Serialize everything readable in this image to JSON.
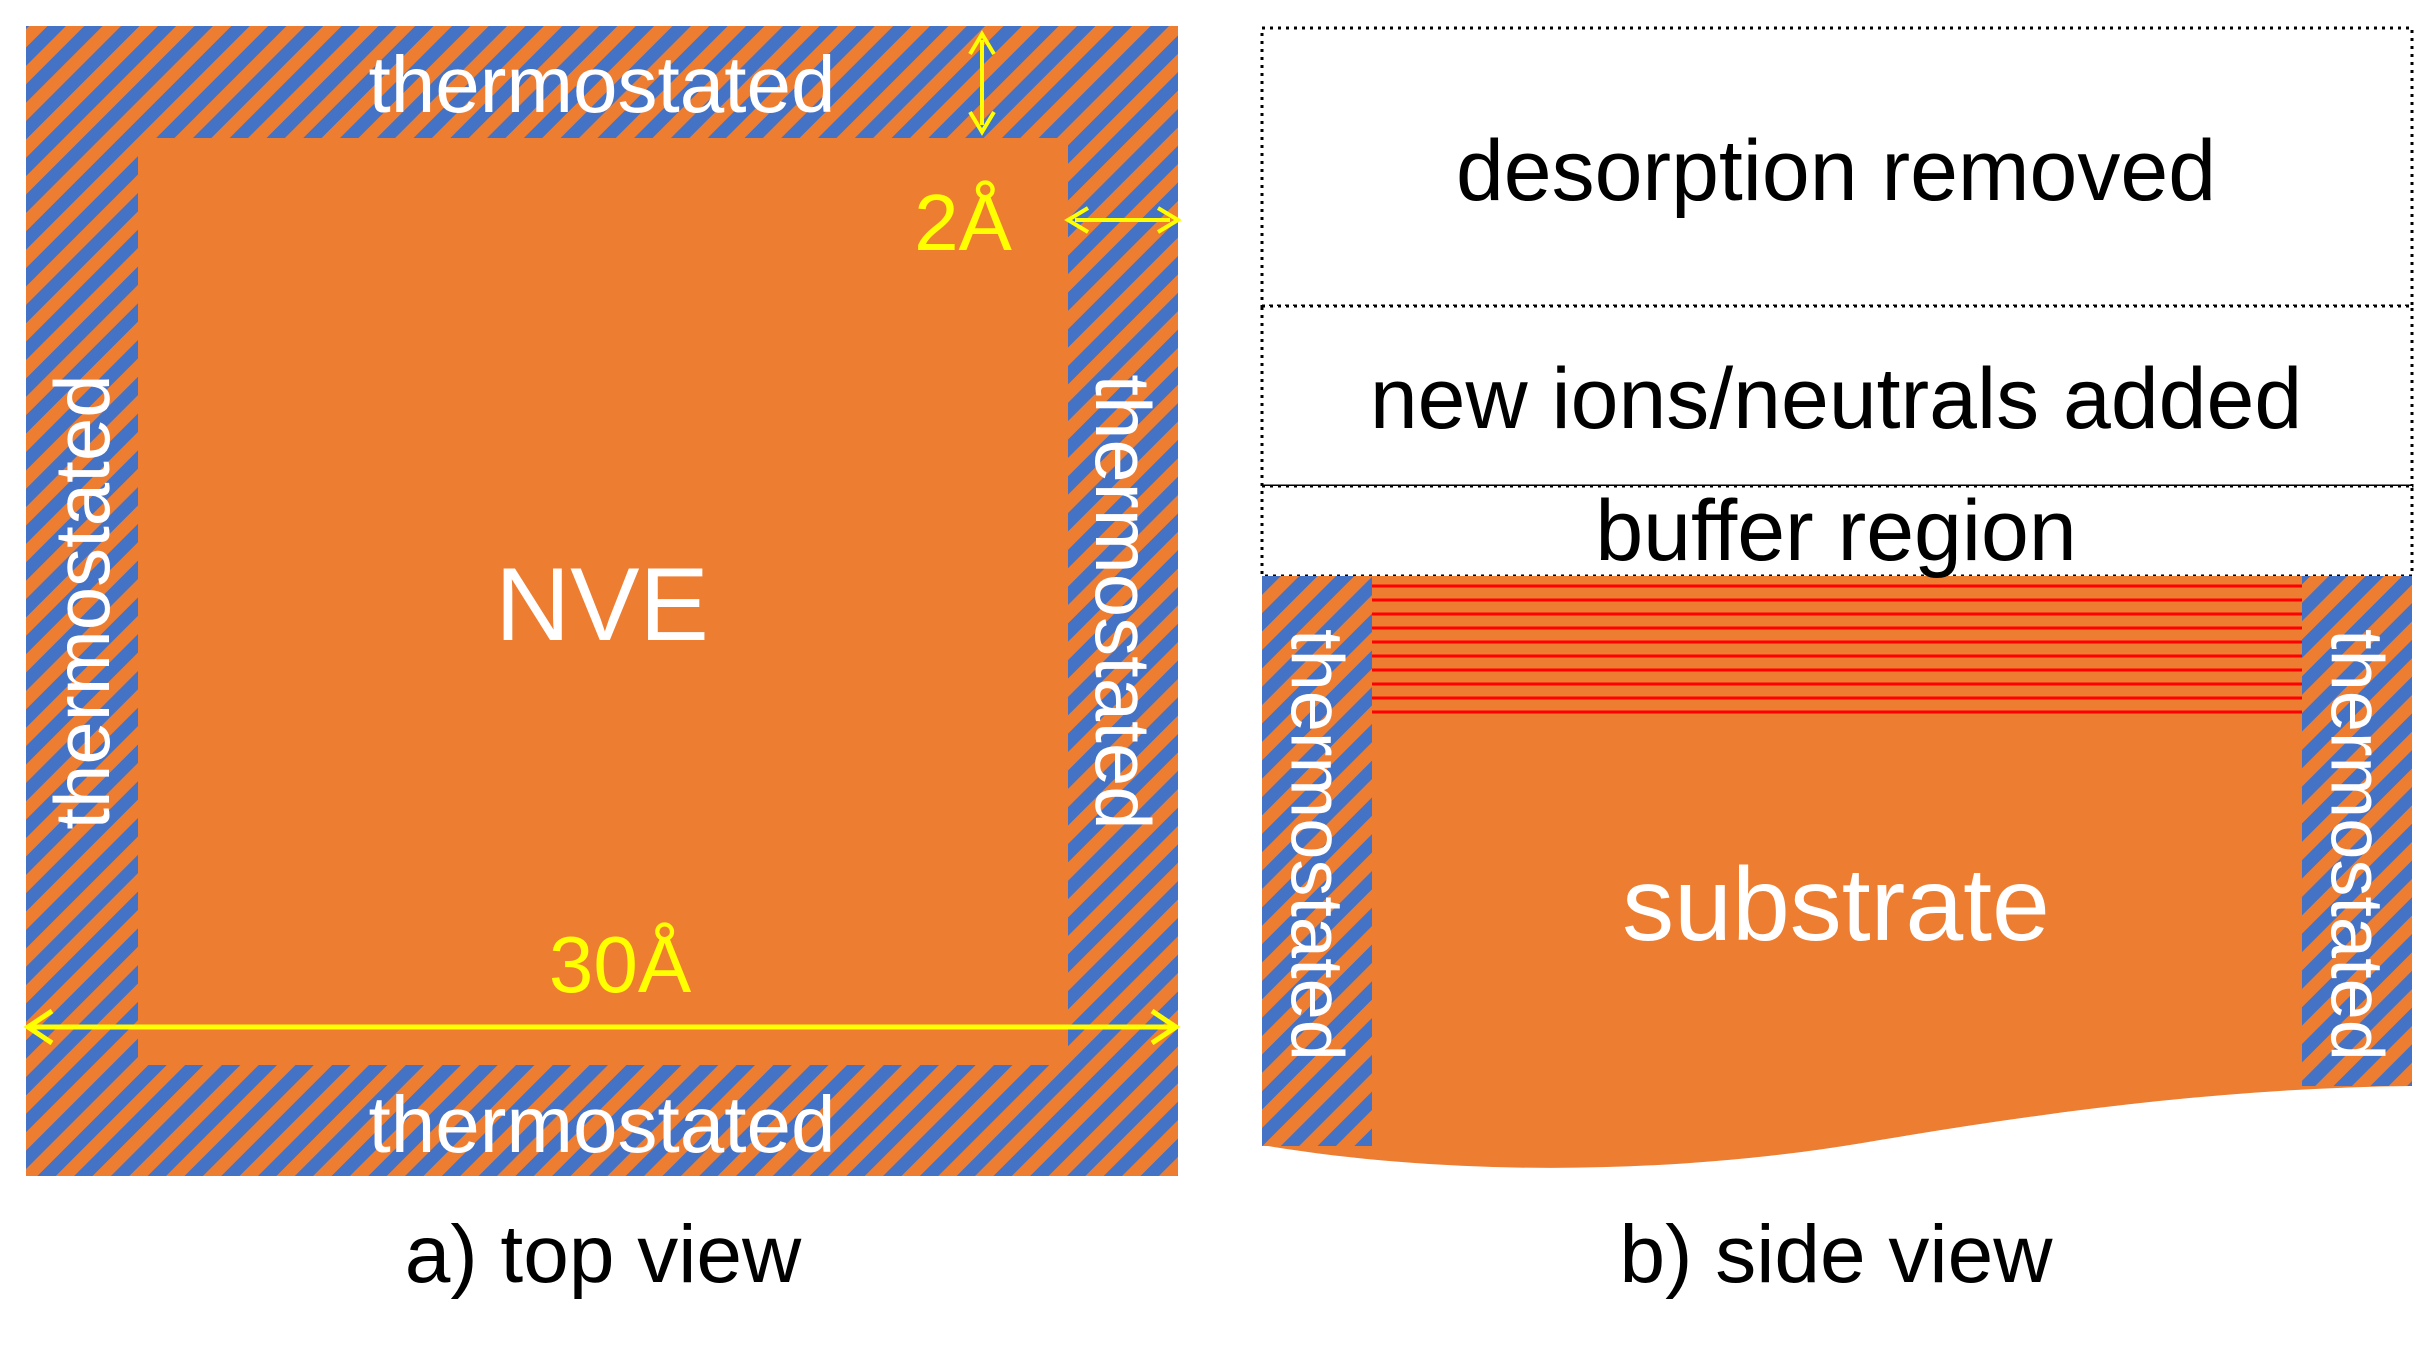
{
  "colors": {
    "substrate": "#ED7D31",
    "stripe": "#4472C4",
    "annotation": "#FFFF00",
    "layer_line": "#FF0000",
    "label_on_substrate": "#FFFFFF",
    "text": "#000000"
  },
  "top_view": {
    "caption": "a) top view",
    "center_label": "NVE",
    "border_label_top": "thermostated",
    "border_label_bottom": "thermostated",
    "border_label_left": "thermostated",
    "border_label_right": "thermostated",
    "thickness_label": "2Å",
    "width_label": "30Å"
  },
  "side_view": {
    "caption": "b) side view",
    "region_desorption": "desorption removed",
    "region_new_species": "new ions/neutrals added",
    "region_buffer": "buffer region",
    "substrate_label": "substrate",
    "wall_label_left": "thermostated",
    "wall_label_right": "thermostated"
  }
}
